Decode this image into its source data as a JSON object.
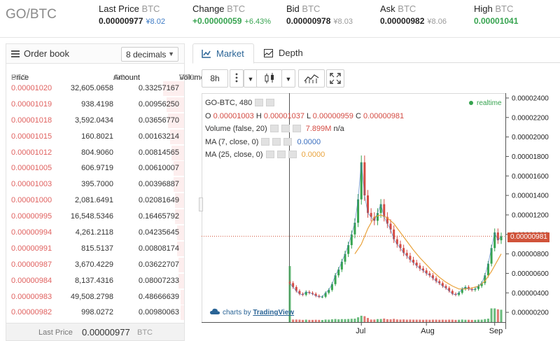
{
  "header": {
    "pair": "GO/BTC",
    "last_price": {
      "label": "Last Price",
      "cur": "BTC",
      "value": "0.00000977",
      "sub": "¥8.02"
    },
    "change": {
      "label": "Change",
      "cur": "BTC",
      "value": "+0.00000059",
      "sub": "+6.43%"
    },
    "bid": {
      "label": "Bid",
      "cur": "BTC",
      "value": "0.00000978",
      "sub": "¥8.03"
    },
    "ask": {
      "label": "Ask",
      "cur": "BTC",
      "value": "0.00000982",
      "sub": "¥8.06"
    },
    "high": {
      "label": "High",
      "cur": "BTC",
      "value": "0.00001041"
    }
  },
  "orderbook": {
    "title": "Order book",
    "decimals": "8 decimals",
    "col_price": "Price",
    "col_amount": "Amount",
    "col_volume": "Volume",
    "cur_btc": "BTC",
    "cur_go": "GO",
    "rows": [
      {
        "price": "0.00001020",
        "amount": "32,605.0658",
        "volume": "0.33257167",
        "depth": 0.12
      },
      {
        "price": "0.00001019",
        "amount": "938.4198",
        "volume": "0.00956250",
        "depth": 0.1
      },
      {
        "price": "0.00001018",
        "amount": "3,592.0434",
        "volume": "0.03656770",
        "depth": 0.09
      },
      {
        "price": "0.00001015",
        "amount": "160.8021",
        "volume": "0.00163214",
        "depth": 0.08
      },
      {
        "price": "0.00001012",
        "amount": "804.9060",
        "volume": "0.00814565",
        "depth": 0.07
      },
      {
        "price": "0.00001005",
        "amount": "606.9719",
        "volume": "0.00610007",
        "depth": 0.06
      },
      {
        "price": "0.00001003",
        "amount": "395.7000",
        "volume": "0.00396887",
        "depth": 0.06
      },
      {
        "price": "0.00001000",
        "amount": "2,081.6491",
        "volume": "0.02081649",
        "depth": 0.05
      },
      {
        "price": "0.00000995",
        "amount": "16,548.5346",
        "volume": "0.16465792",
        "depth": 0.05
      },
      {
        "price": "0.00000994",
        "amount": "4,261.2118",
        "volume": "0.04235645",
        "depth": 0.04
      },
      {
        "price": "0.00000991",
        "amount": "815.5137",
        "volume": "0.00808174",
        "depth": 0.04
      },
      {
        "price": "0.00000987",
        "amount": "3,670.4229",
        "volume": "0.03622707",
        "depth": 0.03
      },
      {
        "price": "0.00000984",
        "amount": "8,137.4316",
        "volume": "0.08007233",
        "depth": 0.03
      },
      {
        "price": "0.00000983",
        "amount": "49,508.2798",
        "volume": "0.48666639",
        "depth": 0.02
      },
      {
        "price": "0.00000982",
        "amount": "998.0272",
        "volume": "0.00980063",
        "depth": 0.02
      }
    ],
    "footer_label": "Last Price",
    "footer_value": "0.00000977",
    "footer_cur": "BTC"
  },
  "tabs": {
    "market": "Market",
    "depth": "Depth"
  },
  "toolbar": {
    "interval": "8h"
  },
  "chart": {
    "symbol_line": "GO-BTC, 480",
    "ohlc": {
      "o_label": "O",
      "o": "0.00001003",
      "h_label": "H",
      "h": "0.00001037",
      "l_label": "L",
      "l": "0.00000959",
      "c_label": "C",
      "c": "0.00000981"
    },
    "volume_label": "Volume (false, 20)",
    "volume_value": "7.899M",
    "volume_na": "n/a",
    "ma7_label": "MA (7, close, 0)",
    "ma7_value": "0.0000",
    "ma25_label": "MA (25, close, 0)",
    "ma25_value": "0.0000",
    "realtime": "realtime",
    "price_tag": "0.00000981",
    "logo_prefix": "charts by",
    "logo_brand": "TradingView",
    "colors": {
      "up": "#36a34f",
      "down": "#d44b43",
      "ma7": "#3b6fbf",
      "ma25": "#e9a23b",
      "tag": "#d0533a"
    }
  },
  "chart_data": {
    "type": "line",
    "title": "GO-BTC, 480",
    "y_ticks": [
      "0.00002400",
      "0.00002200",
      "0.00002000",
      "0.00001800",
      "0.00001600",
      "0.00001400",
      "0.00001200",
      "0.00001000",
      "0.00000800",
      "0.00000600",
      "0.00000400",
      "0.00000200"
    ],
    "x_ticks": [
      "Jul",
      "Aug",
      "Sep"
    ],
    "ylim": [
      1e-06,
      2.45e-05
    ],
    "series": [
      {
        "name": "GO-BTC",
        "points": [
          [
            0,
            5e-06
          ],
          [
            2,
            4.6e-06
          ],
          [
            4,
            4.2e-06
          ],
          [
            6,
            3.9e-06
          ],
          [
            8,
            3.8e-06
          ],
          [
            10,
            4.1e-06
          ],
          [
            12,
            4e-06
          ],
          [
            14,
            3.9e-06
          ],
          [
            16,
            3.7e-06
          ],
          [
            18,
            3.6e-06
          ],
          [
            20,
            3.6e-06
          ],
          [
            22,
            4e-06
          ],
          [
            24,
            4.3e-06
          ],
          [
            26,
            4.9e-06
          ],
          [
            28,
            5.8e-06
          ],
          [
            30,
            6.4e-06
          ],
          [
            32,
            7.2e-06
          ],
          [
            34,
            8e-06
          ],
          [
            36,
            8.9e-06
          ],
          [
            38,
            1e-05
          ],
          [
            40,
            1.12e-05
          ],
          [
            42,
            1.36e-05
          ],
          [
            44,
            1.74e-05
          ],
          [
            46,
            1.4e-05
          ],
          [
            48,
            1.22e-05
          ],
          [
            50,
            1.18e-05
          ],
          [
            52,
            1.14e-05
          ],
          [
            54,
            1.22e-05
          ],
          [
            56,
            1.31e-05
          ],
          [
            58,
            1.18e-05
          ],
          [
            60,
            1.11e-05
          ],
          [
            62,
            1.05e-05
          ],
          [
            64,
            9.5e-06
          ],
          [
            66,
            9e-06
          ],
          [
            68,
            8.6e-06
          ],
          [
            70,
            8.1e-06
          ],
          [
            72,
            7.8e-06
          ],
          [
            74,
            7.4e-06
          ],
          [
            76,
            7.1e-06
          ],
          [
            78,
            6.8e-06
          ],
          [
            80,
            6.5e-06
          ],
          [
            82,
            6.3e-06
          ],
          [
            84,
            6e-06
          ],
          [
            86,
            5.8e-06
          ],
          [
            88,
            5.5e-06
          ],
          [
            90,
            5.2e-06
          ],
          [
            92,
            5e-06
          ],
          [
            94,
            4.7e-06
          ],
          [
            96,
            4.5e-06
          ],
          [
            98,
            4.2e-06
          ],
          [
            100,
            3.9e-06
          ],
          [
            102,
            3.8e-06
          ],
          [
            104,
            4e-06
          ],
          [
            106,
            4.4e-06
          ],
          [
            108,
            4.6e-06
          ],
          [
            110,
            4.4e-06
          ],
          [
            112,
            4.3e-06
          ],
          [
            114,
            4.4e-06
          ],
          [
            116,
            4.7e-06
          ],
          [
            118,
            5e-06
          ],
          [
            120,
            5.8e-06
          ],
          [
            122,
            7e-06
          ],
          [
            124,
            8.6e-06
          ],
          [
            126,
            1.02e-05
          ],
          [
            128,
            9.4e-06
          ],
          [
            130,
            9.8e-06
          ]
        ]
      },
      {
        "name": "MA (25, close, 0)",
        "points": [
          [
            40,
            8e-06
          ],
          [
            44,
            9e-06
          ],
          [
            48,
            1.06e-05
          ],
          [
            52,
            1.18e-05
          ],
          [
            56,
            1.2e-05
          ],
          [
            60,
            1.17e-05
          ],
          [
            64,
            1.11e-05
          ],
          [
            68,
            1.02e-05
          ],
          [
            72,
            9.3e-06
          ],
          [
            76,
            8.4e-06
          ],
          [
            80,
            7.6e-06
          ],
          [
            84,
            6.9e-06
          ],
          [
            88,
            6.2e-06
          ],
          [
            92,
            5.6e-06
          ],
          [
            96,
            5.1e-06
          ],
          [
            100,
            4.7e-06
          ],
          [
            104,
            4.4e-06
          ],
          [
            108,
            4.4e-06
          ],
          [
            112,
            4.5e-06
          ],
          [
            116,
            4.7e-06
          ],
          [
            120,
            5.2e-06
          ],
          [
            124,
            6.2e-06
          ],
          [
            128,
            7.4e-06
          ],
          [
            130,
            8e-06
          ]
        ]
      }
    ]
  }
}
